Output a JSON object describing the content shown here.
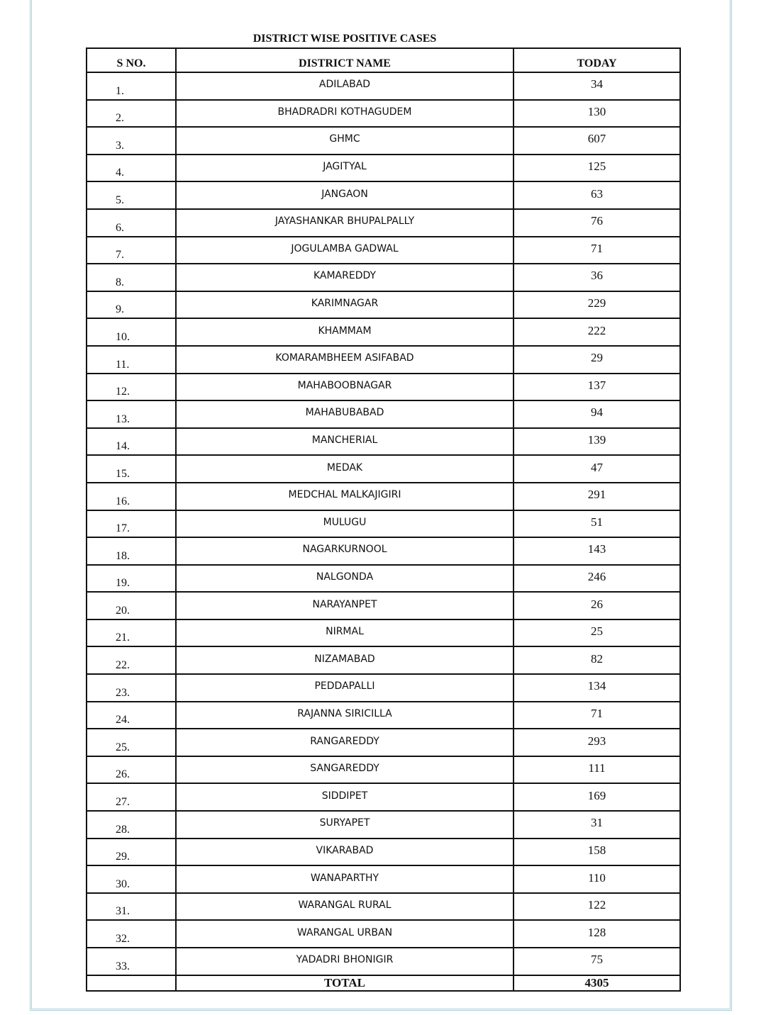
{
  "title": "DISTRICT WISE POSITIVE CASES",
  "headers": {
    "sno": "S NO.",
    "district": "DISTRICT NAME",
    "today": "TODAY"
  },
  "rows": [
    {
      "sno": "1.",
      "district": "ADILABAD",
      "today": "34"
    },
    {
      "sno": "2.",
      "district": "BHADRADRI KOTHAGUDEM",
      "today": "130"
    },
    {
      "sno": "3.",
      "district": "GHMC",
      "today": "607"
    },
    {
      "sno": "4.",
      "district": "JAGITYAL",
      "today": "125"
    },
    {
      "sno": "5.",
      "district": "JANGAON",
      "today": "63"
    },
    {
      "sno": "6.",
      "district": "JAYASHANKAR BHUPALPALLY",
      "today": "76"
    },
    {
      "sno": "7.",
      "district": "JOGULAMBA GADWAL",
      "today": "71"
    },
    {
      "sno": "8.",
      "district": "KAMAREDDY",
      "today": "36"
    },
    {
      "sno": "9.",
      "district": "KARIMNAGAR",
      "today": "229"
    },
    {
      "sno": "10.",
      "district": "KHAMMAM",
      "today": "222"
    },
    {
      "sno": "11.",
      "district": "KOMARAMBHEEM ASIFABAD",
      "today": "29"
    },
    {
      "sno": "12.",
      "district": "MAHABOOBNAGAR",
      "today": "137"
    },
    {
      "sno": "13.",
      "district": "MAHABUBABAD",
      "today": "94"
    },
    {
      "sno": "14.",
      "district": "MANCHERIAL",
      "today": "139"
    },
    {
      "sno": "15.",
      "district": "MEDAK",
      "today": "47"
    },
    {
      "sno": "16.",
      "district": "MEDCHAL MALKAJIGIRI",
      "today": "291"
    },
    {
      "sno": "17.",
      "district": "MULUGU",
      "today": "51"
    },
    {
      "sno": "18.",
      "district": "NAGARKURNOOL",
      "today": "143"
    },
    {
      "sno": "19.",
      "district": "NALGONDA",
      "today": "246"
    },
    {
      "sno": "20.",
      "district": "NARAYANPET",
      "today": "26"
    },
    {
      "sno": "21.",
      "district": "NIRMAL",
      "today": "25"
    },
    {
      "sno": "22.",
      "district": "NIZAMABAD",
      "today": "82"
    },
    {
      "sno": "23.",
      "district": "PEDDAPALLI",
      "today": "134"
    },
    {
      "sno": "24.",
      "district": "RAJANNA SIRICILLA",
      "today": "71"
    },
    {
      "sno": "25.",
      "district": "RANGAREDDY",
      "today": "293"
    },
    {
      "sno": "26.",
      "district": "SANGAREDDY",
      "today": "111"
    },
    {
      "sno": "27.",
      "district": "SIDDIPET",
      "today": "169"
    },
    {
      "sno": "28.",
      "district": "SURYAPET",
      "today": "31"
    },
    {
      "sno": "29.",
      "district": "VIKARABAD",
      "today": "158"
    },
    {
      "sno": "30.",
      "district": "WANAPARTHY",
      "today": "110"
    },
    {
      "sno": "31.",
      "district": "WARANGAL RURAL",
      "today": "122"
    },
    {
      "sno": "32.",
      "district": "WARANGAL URBAN",
      "today": "128"
    },
    {
      "sno": "33.",
      "district": "YADADRI BHONIGIR",
      "today": "75"
    }
  ],
  "total": {
    "label": "TOTAL",
    "value": "4305"
  }
}
